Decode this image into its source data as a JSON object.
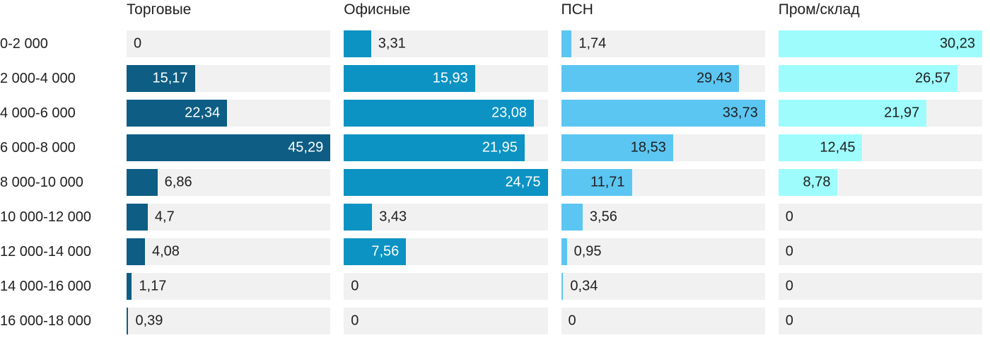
{
  "chart_data": {
    "type": "bar",
    "orientation": "horizontal",
    "title": "",
    "xlabel": "",
    "ylabel": "",
    "legend_position": "column-headers-top",
    "grid": false,
    "scaling": "each series column scaled independently to its own max value",
    "categories": [
      "0-2 000",
      "2 000-4 000",
      "4 000-6 000",
      "6 000-8 000",
      "8 000-10 000",
      "10 000-12 000",
      "12 000-14 000",
      "14 000-16 000",
      "16 000-18 000"
    ],
    "series": [
      {
        "name": "Торговые",
        "color": "#0d5d84",
        "inside_label_color": "#ffffff",
        "values": [
          0,
          15.17,
          22.34,
          45.29,
          6.86,
          4.7,
          4.08,
          1.17,
          0.39
        ],
        "display": [
          "0",
          "15,17",
          "22,34",
          "45,29",
          "6,86",
          "4,7",
          "4,08",
          "1,17",
          "0,39"
        ]
      },
      {
        "name": "Офисные",
        "color": "#0c93c3",
        "inside_label_color": "#ffffff",
        "values": [
          3.31,
          15.93,
          23.08,
          21.95,
          24.75,
          3.43,
          7.56,
          0,
          0
        ],
        "display": [
          "3,31",
          "15,93",
          "23,08",
          "21,95",
          "24,75",
          "3,43",
          "7,56",
          "0",
          "0"
        ]
      },
      {
        "name": "ПСН",
        "color": "#5cc6f2",
        "inside_label_color": "#202020",
        "values": [
          1.74,
          29.43,
          33.73,
          18.53,
          11.71,
          3.56,
          0.95,
          0.34,
          0
        ],
        "display": [
          "1,74",
          "29,43",
          "33,73",
          "18,53",
          "11,71",
          "3,56",
          "0,95",
          "0,34",
          "0"
        ]
      },
      {
        "name": "Пром/склад",
        "color": "#9efcfc",
        "inside_label_color": "#202020",
        "values": [
          30.23,
          26.57,
          21.97,
          12.45,
          8.78,
          0,
          0,
          0,
          0
        ],
        "display": [
          "30,23",
          "26,57",
          "21,97",
          "12,45",
          "8,78",
          "0",
          "0",
          "0",
          "0"
        ]
      }
    ],
    "inside_label_threshold": 0.22,
    "track_color": "#f1f1f1",
    "text_color": "#202020",
    "background_color": "#ffffff"
  }
}
